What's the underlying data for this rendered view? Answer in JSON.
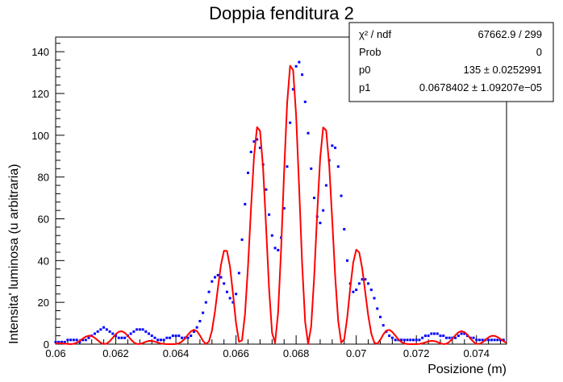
{
  "chart_data": {
    "type": "scatter",
    "title": "Doppia fenditura 2",
    "xlabel": "Posizione (m)",
    "ylabel": "Intensita' luminosa (u arbitraria)",
    "xlim": [
      0.06,
      0.075
    ],
    "ylim": [
      0,
      147
    ],
    "x_ticks": [
      0.06,
      0.062,
      0.064,
      0.066,
      0.068,
      0.07,
      0.072,
      0.074
    ],
    "x_tick_labels": [
      "0.06",
      "0.062",
      "0.064",
      "0.066",
      "0.068",
      "0.07",
      "0.072",
      "0.074"
    ],
    "y_ticks": [
      0,
      20,
      40,
      60,
      80,
      100,
      120,
      140
    ],
    "y_tick_labels": [
      "0",
      "20",
      "40",
      "60",
      "80",
      "100",
      "120",
      "140"
    ],
    "grid": false,
    "legend": "none",
    "series": [
      {
        "kind": "data-points",
        "color": "#0000ff",
        "points": [
          [
            0.06,
            1
          ],
          [
            0.0601,
            1
          ],
          [
            0.0602,
            1
          ],
          [
            0.0603,
            1
          ],
          [
            0.0604,
            2
          ],
          [
            0.0605,
            2
          ],
          [
            0.0606,
            2
          ],
          [
            0.0607,
            2
          ],
          [
            0.0608,
            1
          ],
          [
            0.0609,
            2
          ],
          [
            0.061,
            2
          ],
          [
            0.0611,
            3
          ],
          [
            0.0612,
            4
          ],
          [
            0.0613,
            5
          ],
          [
            0.0614,
            6
          ],
          [
            0.0615,
            7
          ],
          [
            0.0616,
            8
          ],
          [
            0.0617,
            7
          ],
          [
            0.0618,
            6
          ],
          [
            0.0619,
            5
          ],
          [
            0.062,
            4
          ],
          [
            0.0621,
            3
          ],
          [
            0.0622,
            3
          ],
          [
            0.0623,
            3
          ],
          [
            0.0624,
            4
          ],
          [
            0.0625,
            5
          ],
          [
            0.0626,
            6
          ],
          [
            0.0627,
            7
          ],
          [
            0.0628,
            7
          ],
          [
            0.0629,
            7
          ],
          [
            0.063,
            6
          ],
          [
            0.0631,
            5
          ],
          [
            0.0632,
            4
          ],
          [
            0.0633,
            3
          ],
          [
            0.0634,
            2
          ],
          [
            0.0635,
            2
          ],
          [
            0.0636,
            2
          ],
          [
            0.0637,
            3
          ],
          [
            0.0638,
            3
          ],
          [
            0.0639,
            4
          ],
          [
            0.064,
            4
          ],
          [
            0.0641,
            4
          ],
          [
            0.0642,
            3
          ],
          [
            0.0643,
            3
          ],
          [
            0.0644,
            3
          ],
          [
            0.0645,
            4
          ],
          [
            0.0646,
            6
          ],
          [
            0.0647,
            8
          ],
          [
            0.0648,
            11
          ],
          [
            0.0649,
            15
          ],
          [
            0.065,
            20
          ],
          [
            0.0651,
            25
          ],
          [
            0.0652,
            30
          ],
          [
            0.0653,
            32
          ],
          [
            0.0654,
            33
          ],
          [
            0.0655,
            32
          ],
          [
            0.0656,
            29
          ],
          [
            0.0657,
            25
          ],
          [
            0.0658,
            22
          ],
          [
            0.0659,
            20
          ],
          [
            0.066,
            24
          ],
          [
            0.0661,
            34
          ],
          [
            0.0662,
            50
          ],
          [
            0.0663,
            67
          ],
          [
            0.0664,
            82
          ],
          [
            0.0665,
            92
          ],
          [
            0.0666,
            97
          ],
          [
            0.0667,
            98
          ],
          [
            0.0668,
            94
          ],
          [
            0.0669,
            86
          ],
          [
            0.067,
            74
          ],
          [
            0.0671,
            62
          ],
          [
            0.0672,
            52
          ],
          [
            0.0673,
            46
          ],
          [
            0.0674,
            45
          ],
          [
            0.0675,
            51
          ],
          [
            0.0676,
            65
          ],
          [
            0.0677,
            85
          ],
          [
            0.0678,
            106
          ],
          [
            0.0679,
            122
          ],
          [
            0.068,
            133
          ],
          [
            0.0681,
            135
          ],
          [
            0.0682,
            129
          ],
          [
            0.0683,
            116
          ],
          [
            0.0684,
            101
          ],
          [
            0.0685,
            84
          ],
          [
            0.0686,
            70
          ],
          [
            0.0687,
            61
          ],
          [
            0.0688,
            58
          ],
          [
            0.0689,
            64
          ],
          [
            0.069,
            76
          ],
          [
            0.0691,
            88
          ],
          [
            0.0692,
            95
          ],
          [
            0.0693,
            94
          ],
          [
            0.0694,
            85
          ],
          [
            0.0695,
            71
          ],
          [
            0.0696,
            55
          ],
          [
            0.0697,
            40
          ],
          [
            0.0698,
            29
          ],
          [
            0.0699,
            25
          ],
          [
            0.07,
            26
          ],
          [
            0.0701,
            29
          ],
          [
            0.0702,
            31
          ],
          [
            0.0703,
            31
          ],
          [
            0.0704,
            29
          ],
          [
            0.0705,
            26
          ],
          [
            0.0706,
            22
          ],
          [
            0.0707,
            17
          ],
          [
            0.0708,
            13
          ],
          [
            0.0709,
            9
          ],
          [
            0.071,
            6
          ],
          [
            0.0711,
            4
          ],
          [
            0.0712,
            3
          ],
          [
            0.0713,
            2
          ],
          [
            0.0714,
            2
          ],
          [
            0.0715,
            2
          ],
          [
            0.0716,
            2
          ],
          [
            0.0717,
            2
          ],
          [
            0.0718,
            2
          ],
          [
            0.0719,
            2
          ],
          [
            0.072,
            2
          ],
          [
            0.0721,
            2
          ],
          [
            0.0722,
            3
          ],
          [
            0.0723,
            4
          ],
          [
            0.0724,
            4
          ],
          [
            0.0725,
            5
          ],
          [
            0.0726,
            5
          ],
          [
            0.0727,
            5
          ],
          [
            0.0728,
            4
          ],
          [
            0.0729,
            4
          ],
          [
            0.073,
            3
          ],
          [
            0.0731,
            3
          ],
          [
            0.0732,
            3
          ],
          [
            0.0733,
            3
          ],
          [
            0.0734,
            4
          ],
          [
            0.0735,
            5
          ],
          [
            0.0736,
            5
          ],
          [
            0.0737,
            4
          ],
          [
            0.0738,
            3
          ],
          [
            0.0739,
            3
          ],
          [
            0.074,
            2
          ],
          [
            0.0741,
            2
          ],
          [
            0.0742,
            2
          ],
          [
            0.0743,
            2
          ],
          [
            0.0744,
            2
          ],
          [
            0.0745,
            2
          ],
          [
            0.0746,
            2
          ],
          [
            0.0747,
            2
          ],
          [
            0.0748,
            2
          ],
          [
            0.0749,
            2
          ]
        ]
      },
      {
        "kind": "fit-curve",
        "color": "#ff0000",
        "model": {
          "p0": 135,
          "p1": 0.0678402,
          "fringe_period": 0.00113,
          "envelope_first_zero": 0.0041
        }
      }
    ],
    "stats_box": [
      {
        "label": "χ² / ndf",
        "value": "67662.9 / 299"
      },
      {
        "label": "Prob",
        "value": "0"
      },
      {
        "label": "p0",
        "value": "135 ± 0.0252991"
      },
      {
        "label": "p1",
        "value": "0.0678402 ± 1.09207e−05"
      }
    ]
  }
}
